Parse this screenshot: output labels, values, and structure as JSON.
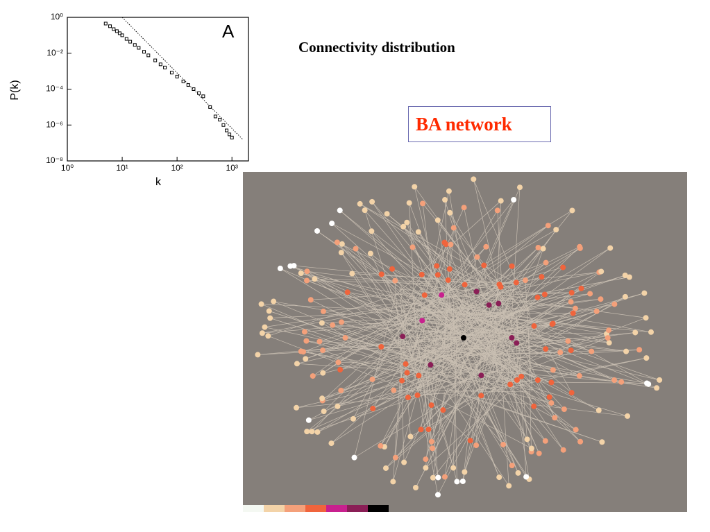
{
  "chart_data": {
    "type": "scatter",
    "annotation": "A",
    "xlabel": "k",
    "ylabel": "P(k)",
    "xscale": "log",
    "yscale": "log",
    "xlim": [
      1,
      2000
    ],
    "ylim": [
      1e-08,
      1
    ],
    "xticks": [
      {
        "value": 1,
        "label": "10⁰"
      },
      {
        "value": 10,
        "label": "10¹"
      },
      {
        "value": 100,
        "label": "10²"
      },
      {
        "value": 1000,
        "label": "10³"
      }
    ],
    "yticks": [
      {
        "value": 1,
        "label": "10⁰"
      },
      {
        "value": 0.01,
        "label": "10⁻²"
      },
      {
        "value": 0.0001,
        "label": "10⁻⁴"
      },
      {
        "value": 1e-06,
        "label": "10⁻⁶"
      },
      {
        "value": 1e-08,
        "label": "10⁻⁸"
      }
    ],
    "series": [
      {
        "color": "#000000",
        "x": [
          5,
          6,
          7,
          8,
          9,
          10,
          12,
          14,
          17,
          20,
          25,
          30,
          40,
          50,
          60,
          80,
          100,
          130,
          160,
          200,
          250,
          300,
          400,
          500,
          600,
          700,
          800,
          900,
          1000
        ],
        "values": [
          0.45,
          0.32,
          0.22,
          0.17,
          0.13,
          0.1,
          0.063,
          0.044,
          0.029,
          0.02,
          0.012,
          0.0076,
          0.004,
          0.0024,
          0.0016,
          0.00083,
          0.0005,
          0.00027,
          0.00017,
          0.0001,
          6e-05,
          4e-05,
          1e-05,
          3e-06,
          2e-06,
          1e-06,
          5e-07,
          3e-07,
          2e-07
        ]
      }
    ],
    "reference_line": {
      "color": "#000000",
      "x": [
        10,
        1600
      ],
      "values": [
        1,
        1.5e-07
      ]
    }
  },
  "heading": "Connectivity distribution",
  "network_label": "BA network"
}
